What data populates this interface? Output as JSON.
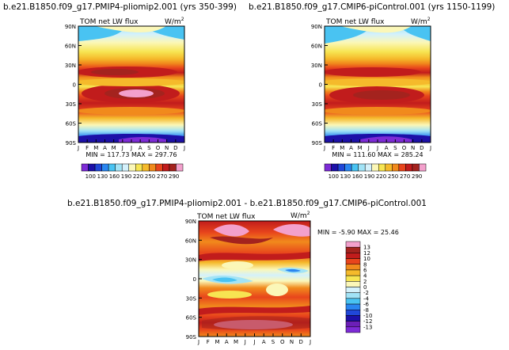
{
  "chart_data": [
    {
      "type": "contour",
      "panel": "top-left",
      "title": "b.e21.B1850.f09_g17.PMIP4-pliomip2.001  (yrs  350-399)",
      "variable_label": "TOM  net  LW  flux",
      "units_label": "W/m",
      "units_sup": "2",
      "x_ticks": [
        "J",
        "F",
        "M",
        "A",
        "M",
        "J",
        "J",
        "A",
        "S",
        "O",
        "N",
        "D",
        "J"
      ],
      "y_ticks": [
        "90N",
        "60N",
        "30N",
        "0",
        "30S",
        "60S",
        "90S"
      ],
      "min_max": "MIN  =  117.73   MAX  =  297.76",
      "levels": [
        100,
        130,
        160,
        190,
        220,
        250,
        270,
        290
      ],
      "palette": [
        "#7d2bd6",
        "#1c10a8",
        "#2047d8",
        "#2a86f0",
        "#49c3f2",
        "#a2e3f6",
        "#d4f1fb",
        "#fbf7b8",
        "#f7e552",
        "#f5ba2b",
        "#f18a1c",
        "#e8451c",
        "#c11c1c",
        "#a4231e",
        "#f3a0cc"
      ]
    },
    {
      "type": "contour",
      "panel": "top-right",
      "title": "b.e21.B1850.f09_g17.CMIP6-piControl.001  (yrs  1150-1199)",
      "variable_label": "TOM  net  LW  flux",
      "units_label": "W/m",
      "units_sup": "2",
      "x_ticks": [
        "J",
        "F",
        "M",
        "A",
        "M",
        "J",
        "J",
        "A",
        "S",
        "O",
        "N",
        "D",
        "J"
      ],
      "y_ticks": [
        "90N",
        "60N",
        "30N",
        "0",
        "30S",
        "60S",
        "90S"
      ],
      "min_max": "MIN  =  111.60   MAX  =  285.24",
      "levels": [
        100,
        130,
        160,
        190,
        220,
        250,
        270,
        290
      ],
      "palette": [
        "#7d2bd6",
        "#1c10a8",
        "#2047d8",
        "#2a86f0",
        "#49c3f2",
        "#a2e3f6",
        "#d4f1fb",
        "#fbf7b8",
        "#f7e552",
        "#f5ba2b",
        "#f18a1c",
        "#e8451c",
        "#c11c1c",
        "#a4231e",
        "#f3a0cc"
      ]
    },
    {
      "type": "contour",
      "panel": "bottom-difference",
      "title": "b.e21.B1850.f09_g17.PMIP4-pliomip2.001  -  b.e21.B1850.f09_g17.CMIP6-piControl.001",
      "variable_label": "TOM  net  LW  flux",
      "units_label": "W/m",
      "units_sup": "2",
      "x_ticks": [
        "J",
        "F",
        "M",
        "A",
        "M",
        "J",
        "J",
        "A",
        "S",
        "O",
        "N",
        "D",
        "J"
      ],
      "y_ticks": [
        "90N",
        "60N",
        "30N",
        "0",
        "30S",
        "60S",
        "90S"
      ],
      "min_max": "MIN  =  -5.90   MAX  =  25.46",
      "levels": [
        13,
        12,
        10,
        8,
        6,
        4,
        2,
        0,
        -2,
        -4,
        -6,
        -8,
        -10,
        -12,
        -13
      ],
      "palette": [
        "#f3a0cc",
        "#a4231e",
        "#c11c1c",
        "#e8451c",
        "#f18a1c",
        "#f5ba2b",
        "#f7e552",
        "#fbf7b8",
        "#d4f1fb",
        "#a2e3f6",
        "#49c3f2",
        "#2a86f0",
        "#2047d8",
        "#1c10a8",
        "#6c1fb8",
        "#7d2bd6"
      ]
    }
  ]
}
